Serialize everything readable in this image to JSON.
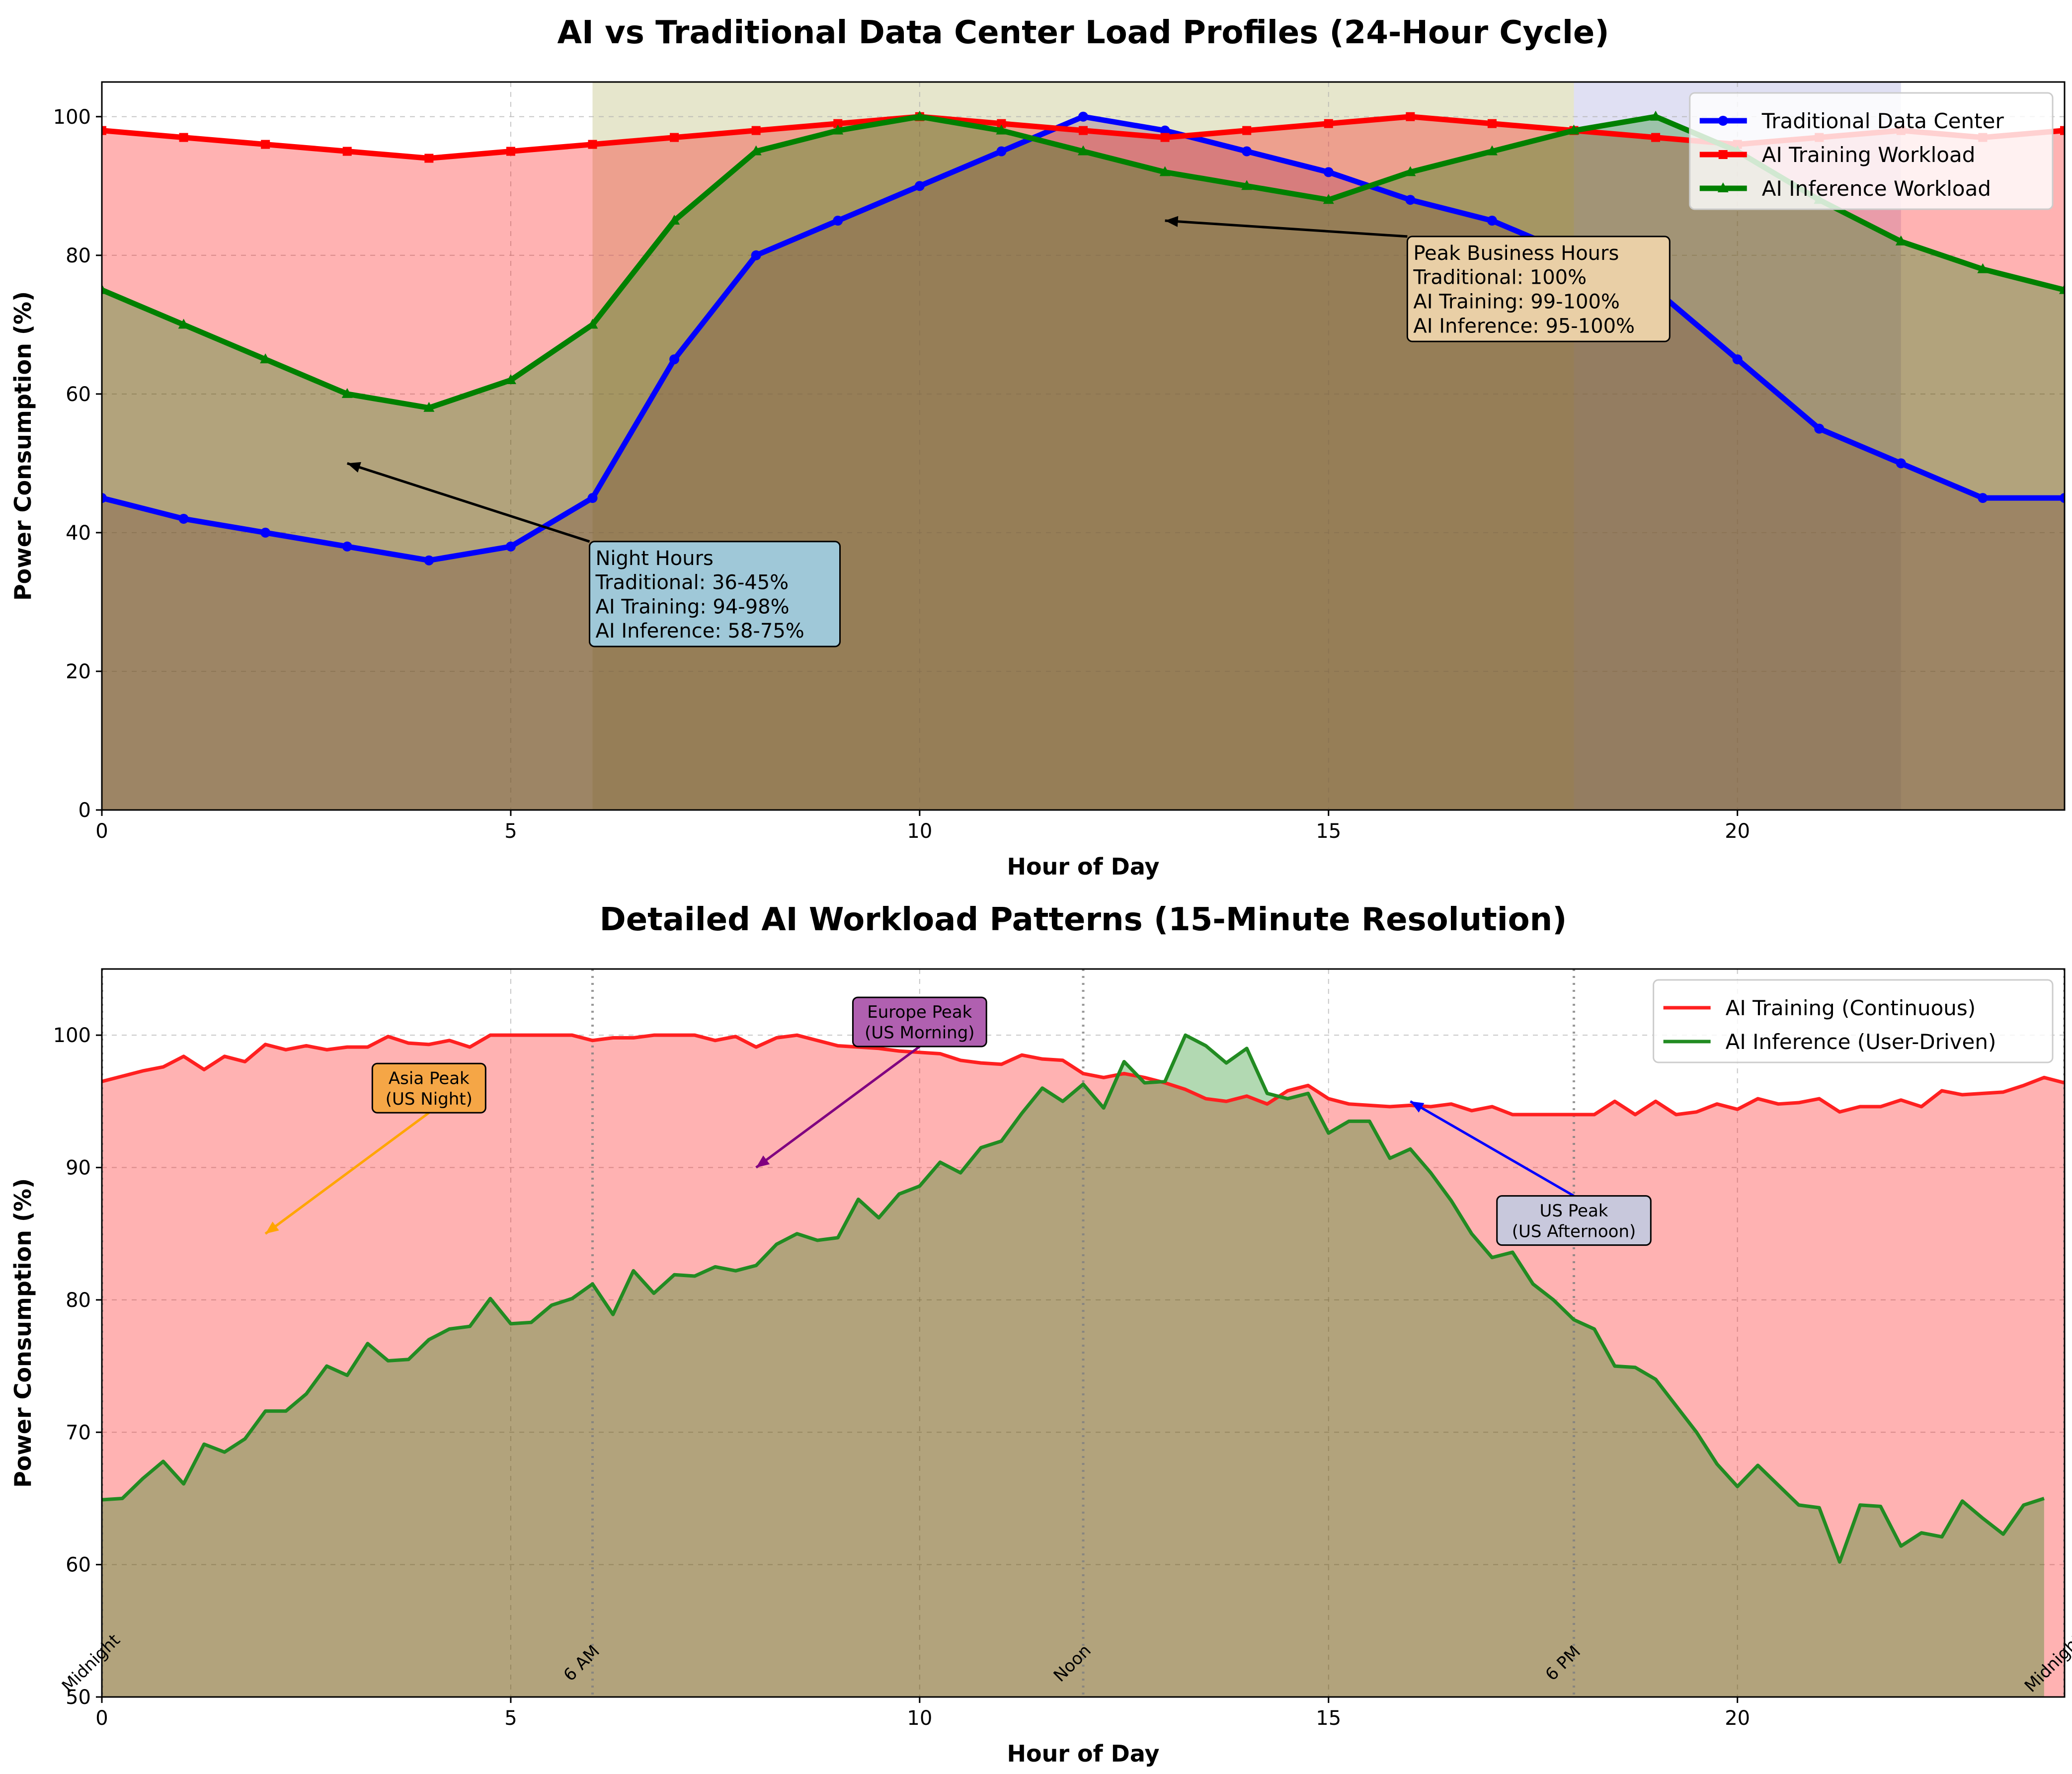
{
  "chart_data": [
    {
      "type": "line",
      "title": "AI vs Traditional Data Center Load Profiles (24-Hour Cycle)",
      "xlabel": "Hour of Day",
      "ylabel": "Power Consumption (%)",
      "xlim": [
        0,
        24
      ],
      "ylim": [
        0,
        105
      ],
      "xticks": [
        0,
        5,
        10,
        15,
        20
      ],
      "yticks": [
        0,
        20,
        40,
        60,
        80,
        100
      ],
      "grid": true,
      "legend_position": "top-right",
      "x": [
        0,
        1,
        2,
        3,
        4,
        5,
        6,
        7,
        8,
        9,
        10,
        11,
        12,
        13,
        14,
        15,
        16,
        17,
        18,
        19,
        20,
        21,
        22,
        23,
        24
      ],
      "series": [
        {
          "name": "Traditional Data Center",
          "color": "#0000ff",
          "fill": "rgba(160,120,150,0.45)",
          "marker": "circle",
          "values": [
            45,
            42,
            40,
            38,
            36,
            38,
            45,
            65,
            80,
            85,
            90,
            95,
            100,
            98,
            95,
            92,
            88,
            85,
            80,
            75,
            65,
            55,
            50,
            45,
            45
          ]
        },
        {
          "name": "AI Training Workload",
          "color": "#ff0000",
          "fill": "rgba(255,0,0,0.3)",
          "marker": "square",
          "values": [
            98,
            97,
            96,
            95,
            94,
            95,
            96,
            97,
            98,
            99,
            100,
            99,
            98,
            97,
            98,
            99,
            100,
            99,
            98,
            97,
            96,
            97,
            98,
            97,
            98
          ]
        },
        {
          "name": "AI Inference Workload",
          "color": "#008000",
          "fill": "rgba(0,128,0,0.3)",
          "marker": "triangle",
          "values": [
            75,
            70,
            65,
            60,
            58,
            62,
            70,
            85,
            95,
            98,
            100,
            98,
            95,
            92,
            90,
            88,
            92,
            95,
            98,
            100,
            95,
            88,
            82,
            78,
            75
          ]
        }
      ],
      "shaded_spans": [
        {
          "from": 6,
          "to": 18,
          "color": "rgba(128,128,0,0.2)"
        },
        {
          "from": 18,
          "to": 22,
          "color": "rgba(0,0,160,0.12)"
        }
      ],
      "annotations": [
        {
          "lines": [
            "Night Hours",
            "Traditional: 36-45%",
            "AI Training: 94-98%",
            "AI Inference: 58-75%"
          ],
          "box_color": "#9fc8d8",
          "arrow_to": [
            3,
            50
          ],
          "text_at": [
            6,
            38
          ]
        },
        {
          "lines": [
            "Peak Business Hours",
            "Traditional: 100%",
            "AI Training: 99-100%",
            "AI Inference: 95-100%"
          ],
          "box_color": "#e9cfa6",
          "arrow_to": [
            13,
            85
          ],
          "text_at": [
            16,
            82
          ]
        }
      ]
    },
    {
      "type": "area",
      "title": "Detailed AI Workload Patterns (15-Minute Resolution)",
      "xlabel": "Hour of Day",
      "ylabel": "Power Consumption (%)",
      "xlim": [
        0,
        24
      ],
      "ylim": [
        50,
        105
      ],
      "xticks": [
        0,
        5,
        10,
        15,
        20
      ],
      "yticks": [
        50,
        60,
        70,
        80,
        90,
        100
      ],
      "grid": true,
      "legend_position": "top-right",
      "x_step_hours": 0.25,
      "series": [
        {
          "name": "AI Training (Continuous)",
          "color": "#ff2020",
          "fill": "rgba(255,0,0,0.3)",
          "values": [
            96.5,
            96.9,
            97.3,
            97.6,
            98.4,
            97.4,
            98.4,
            98.0,
            99.3,
            98.9,
            99.2,
            98.9,
            99.1,
            99.1,
            99.9,
            99.4,
            99.3,
            99.6,
            99.1,
            100,
            100,
            100,
            100,
            100,
            99.6,
            99.8,
            99.8,
            100,
            100,
            100,
            99.6,
            99.9,
            99.1,
            99.8,
            100,
            99.6,
            99.2,
            99.1,
            99.0,
            98.8,
            98.7,
            98.6,
            98.1,
            97.9,
            97.8,
            98.5,
            98.2,
            98.1,
            97.1,
            96.8,
            97.1,
            96.8,
            96.4,
            95.9,
            95.2,
            95.0,
            95.4,
            94.8,
            95.8,
            96.2,
            95.2,
            94.8,
            94.7,
            94.6,
            94.7,
            94.6,
            94.8,
            94.3,
            94.6,
            94.0,
            94.0,
            94.0,
            94.0,
            94.0,
            95.0,
            94.0,
            95.0,
            94.0,
            94.2,
            94.8,
            94.4,
            95.2,
            94.8,
            94.9,
            95.2,
            94.2,
            94.6,
            94.6,
            95.1,
            94.6,
            95.8,
            95.5,
            95.6,
            95.7,
            96.2,
            96.8,
            96.4,
            96.9
          ]
        },
        {
          "name": "AI Inference (User-Driven)",
          "color": "#228b22",
          "fill": "rgba(0,128,0,0.3)",
          "values": [
            64.9,
            65.0,
            66.5,
            67.8,
            66.1,
            69.1,
            68.5,
            69.5,
            71.6,
            71.6,
            72.9,
            75.0,
            74.3,
            76.7,
            75.4,
            75.5,
            77.0,
            77.8,
            78.0,
            80.1,
            78.2,
            78.3,
            79.6,
            80.1,
            81.2,
            78.9,
            82.2,
            80.5,
            81.9,
            81.8,
            82.5,
            82.2,
            82.6,
            84.2,
            85.0,
            84.5,
            84.7,
            87.6,
            86.2,
            88.0,
            88.6,
            90.4,
            89.6,
            91.5,
            92.0,
            94.1,
            96.0,
            95.0,
            96.3,
            94.5,
            98.0,
            96.4,
            96.5,
            100,
            99.2,
            97.9,
            99.0,
            95.6,
            95.2,
            95.6,
            92.6,
            93.5,
            93.5,
            90.7,
            91.4,
            89.6,
            87.5,
            85.0,
            83.2,
            83.6,
            81.2,
            80.0,
            78.5,
            77.8,
            75.0,
            74.9,
            74.0,
            72.0,
            70.0,
            67.6,
            65.9,
            67.5,
            66.0,
            64.5,
            64.3,
            60.2,
            64.5,
            64.4,
            61.4,
            62.4,
            62.1,
            64.8,
            63.5,
            62.3,
            64.5,
            65.0
          ]
        }
      ],
      "reference_lines": [
        {
          "x": 0,
          "label": "Midnight"
        },
        {
          "x": 6,
          "label": "6 AM"
        },
        {
          "x": 12,
          "label": "Noon"
        },
        {
          "x": 18,
          "label": "6 PM"
        },
        {
          "x": 24,
          "label": "Midnight"
        }
      ],
      "annotations": [
        {
          "lines": [
            "Asia Peak",
            "(US Night)"
          ],
          "box_color": "#f5a646",
          "arrow_color": "#ffa500",
          "arrow_to": [
            2,
            85
          ],
          "text_at": [
            4,
            96
          ]
        },
        {
          "lines": [
            "Europe Peak",
            "(US Morning)"
          ],
          "box_color": "#b060b0",
          "arrow_color": "#800080",
          "arrow_to": [
            8,
            90
          ],
          "text_at": [
            10,
            101
          ]
        },
        {
          "lines": [
            "US Peak",
            "(US Afternoon)"
          ],
          "box_color": "#c8c8dc",
          "arrow_color": "#0000ff",
          "arrow_to": [
            16,
            95
          ],
          "text_at": [
            18,
            86
          ]
        }
      ]
    }
  ]
}
